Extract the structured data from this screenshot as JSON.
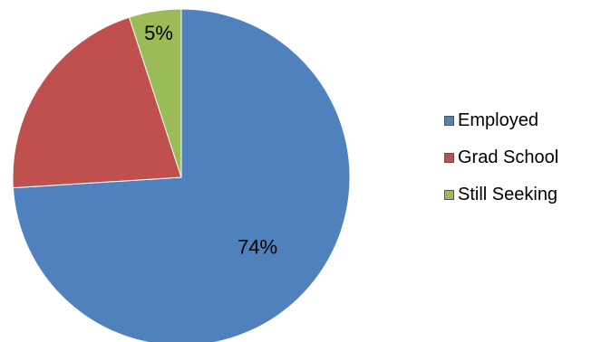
{
  "chart_data": {
    "type": "pie",
    "slices": [
      {
        "name": "Employed",
        "value": 74,
        "label": "74%",
        "color": "#4f81bd"
      },
      {
        "name": "Grad School",
        "value": 21,
        "label": "",
        "color": "#c0504d"
      },
      {
        "name": "Still Seeking",
        "value": 5,
        "label": "5%",
        "color": "#9bbb59"
      }
    ],
    "legend_position": "right",
    "title": ""
  }
}
